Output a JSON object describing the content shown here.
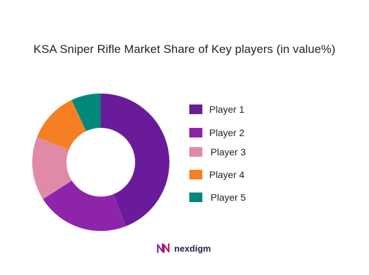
{
  "chart_data": {
    "type": "pie",
    "title": "KSA Sniper Rifle Market Share of Key players (in value%)",
    "categories": [
      "Player 1",
      "Player 2",
      "Player 3",
      "Player 4",
      "Player 5"
    ],
    "values": [
      44,
      22,
      15,
      12,
      7
    ],
    "colors": [
      "#6a1b9a",
      "#8e24aa",
      "#e08aa8",
      "#f57f22",
      "#00897b"
    ],
    "legend_position": "right",
    "donut": true
  },
  "branding": {
    "logo_text": "nexdigm"
  }
}
